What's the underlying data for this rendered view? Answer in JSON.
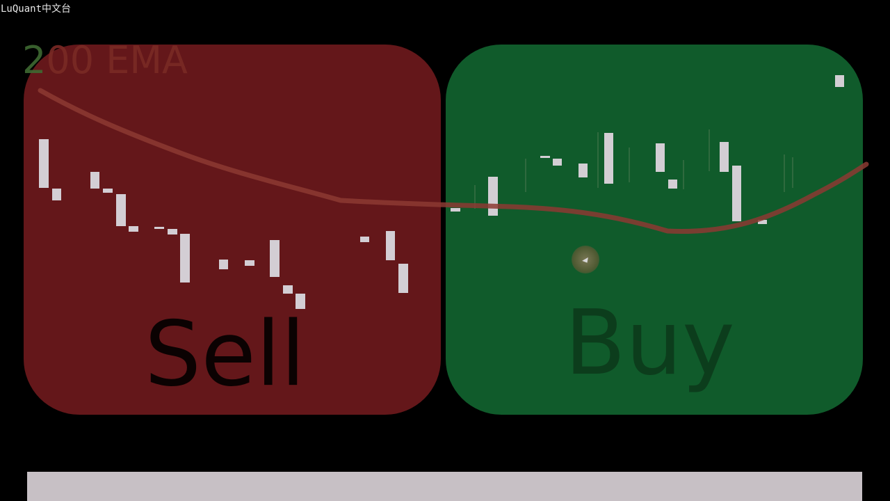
{
  "watermark": "LuQuant中文台",
  "ema_label": {
    "lead": "2",
    "rest": "00 EMA"
  },
  "sell_label": "Sell",
  "buy_label": "Buy",
  "colors": {
    "sell_zone": "#64171a",
    "buy_zone": "#105b2b",
    "candle": "#d3ced4",
    "ema_line_sell": "#8c3a33",
    "ema_line_buy": "#7a5a3a"
  }
}
